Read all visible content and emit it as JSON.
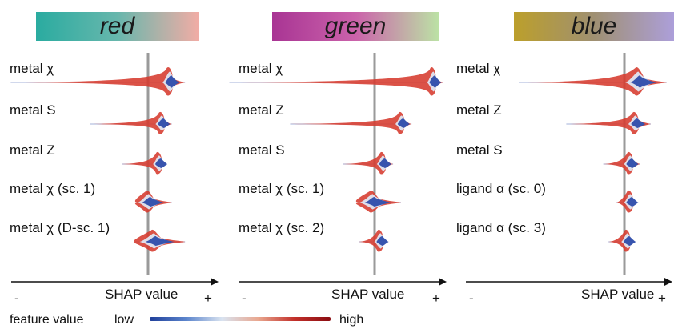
{
  "chart_data": [
    {
      "type": "violin",
      "title": "red",
      "header_gradient": [
        "#1fa79b",
        "#5fb3a8",
        "#f0a8a0"
      ],
      "xlabel": "SHAP value",
      "axis_ends": [
        "-",
        "+"
      ],
      "features": [
        {
          "label": "metal χ",
          "min": -0.52,
          "max": 0.14,
          "peak": 0.08
        },
        {
          "label": "metal S",
          "min": -0.22,
          "max": 0.09,
          "peak": 0.05
        },
        {
          "label": "metal Z",
          "min": -0.1,
          "max": 0.07,
          "peak": 0.04
        },
        {
          "label": "metal χ (sc. 1)",
          "min": -0.04,
          "max": 0.09,
          "peak": 0.0
        },
        {
          "label": "metal χ (D-sc. 1)",
          "min": -0.05,
          "max": 0.14,
          "peak": 0.02
        }
      ]
    },
    {
      "type": "violin",
      "title": "green",
      "header_gradient": [
        "#a42a8e",
        "#c85aa6",
        "#b8e0a0"
      ],
      "xlabel": "SHAP value",
      "axis_ends": [
        "-",
        "+"
      ],
      "features": [
        {
          "label": "metal χ",
          "min": -0.55,
          "max": 0.26,
          "peak": 0.22
        },
        {
          "label": "metal Z",
          "min": -0.32,
          "max": 0.14,
          "peak": 0.1
        },
        {
          "label": "metal S",
          "min": -0.12,
          "max": 0.07,
          "peak": 0.03
        },
        {
          "label": "metal χ (sc. 1)",
          "min": -0.06,
          "max": 0.1,
          "peak": -0.01
        },
        {
          "label": "metal χ (sc. 2)",
          "min": -0.06,
          "max": 0.05,
          "peak": 0.02
        }
      ]
    },
    {
      "type": "violin",
      "title": "blue",
      "header_gradient": [
        "#b89a20",
        "#9a8a6a",
        "#a89ad8"
      ],
      "xlabel": "SHAP value",
      "axis_ends": [
        "-",
        "+"
      ],
      "features": [
        {
          "label": "metal χ",
          "min": -0.4,
          "max": 0.16,
          "peak": 0.05
        },
        {
          "label": "metal Z",
          "min": -0.22,
          "max": 0.1,
          "peak": 0.04
        },
        {
          "label": "metal S",
          "min": -0.08,
          "max": 0.06,
          "peak": 0.02
        },
        {
          "label": "ligand α (sc. 0)",
          "min": -0.03,
          "max": 0.05,
          "peak": 0.02
        },
        {
          "label": "ligand α (sc. 3)",
          "min": -0.06,
          "max": 0.04,
          "peak": 0.01
        }
      ]
    }
  ],
  "legend": {
    "label": "feature value",
    "low": "low",
    "high": "high",
    "colors": [
      "#1f3f9a",
      "#5b84cc",
      "#d9e3f0",
      "#e9a78f",
      "#c2302a",
      "#8b0d12"
    ]
  },
  "colors": {
    "zero_line": "#9a9a9a",
    "axis": "#111111"
  }
}
